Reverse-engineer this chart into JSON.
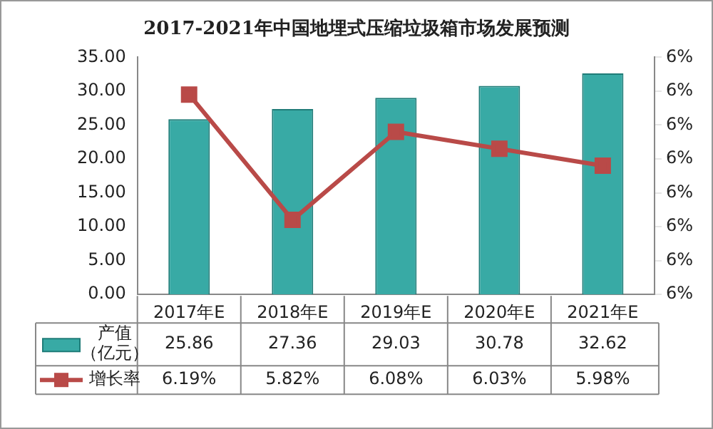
{
  "chart_data": {
    "type": "bar",
    "title": "2017-2021年中国地埋式压缩垃圾箱市场发展预测",
    "categories": [
      "2017年E",
      "2018年E",
      "2019年E",
      "2020年E",
      "2021年E"
    ],
    "series": [
      {
        "name": "产值（亿元）",
        "color": "#38aaa5",
        "values": [
          25.86,
          27.36,
          29.03,
          30.78,
          32.62
        ],
        "value_labels": [
          "25.86",
          "27.36",
          "29.03",
          "30.78",
          "32.62"
        ]
      },
      {
        "name": "增长率",
        "type": "line",
        "axis": "y2",
        "color": "#b94a48",
        "values": [
          6.19,
          5.82,
          6.08,
          6.03,
          5.98
        ],
        "value_labels": [
          "6.19%",
          "5.82%",
          "6.08%",
          "6.03%",
          "5.98%"
        ]
      }
    ],
    "ylim": [
      0,
      35
    ],
    "yticks": [
      "0.00",
      "5.00",
      "10.00",
      "15.00",
      "20.00",
      "25.00",
      "30.00",
      "35.00"
    ],
    "y2lim": [
      5.6,
      6.3
    ],
    "y2ticks": [
      {
        "value": 5.6,
        "label": "6%"
      },
      {
        "value": 5.7,
        "label": "6%"
      },
      {
        "value": 5.8,
        "label": "6%"
      },
      {
        "value": 5.9,
        "label": "6%"
      },
      {
        "value": 6.0,
        "label": "6%"
      },
      {
        "value": 6.1,
        "label": "6%"
      },
      {
        "value": 6.2,
        "label": "6%"
      },
      {
        "value": 6.3,
        "label": "6%"
      }
    ],
    "legend": "bottom",
    "grid": false,
    "marker": "square",
    "line_style": "solid"
  }
}
